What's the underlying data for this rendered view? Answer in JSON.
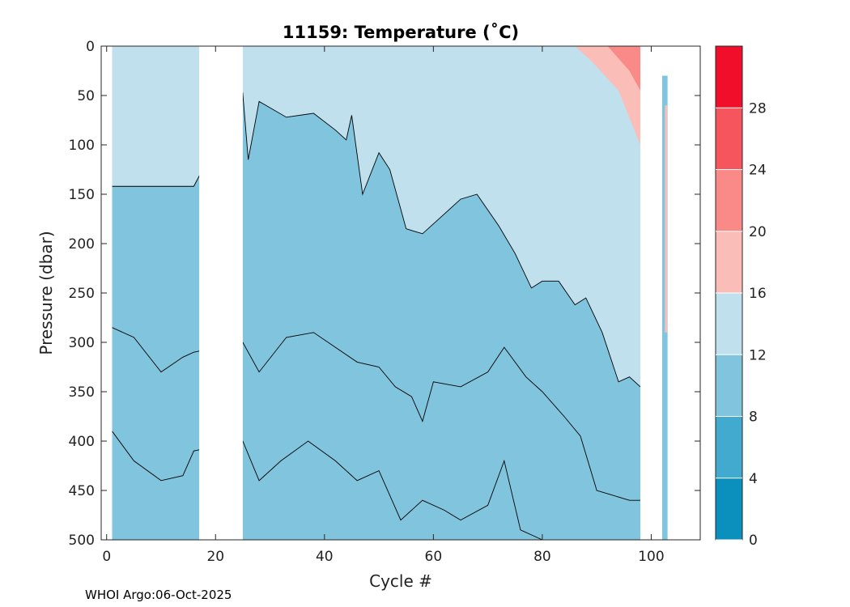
{
  "chart_data": {
    "type": "heatmap",
    "title": "11159:  Temperature (˚C)",
    "xlabel": "Cycle #",
    "ylabel": "Pressure (dbar)",
    "xlim": [
      -1,
      109
    ],
    "ylim": [
      500,
      0
    ],
    "x_ticks": [
      "0",
      "20",
      "40",
      "60",
      "80",
      "100"
    ],
    "y_ticks": [
      "0",
      "50",
      "100",
      "150",
      "200",
      "250",
      "300",
      "350",
      "400",
      "450",
      "500"
    ],
    "colorbar": {
      "levels": [
        0,
        4,
        8,
        12,
        16,
        20,
        24,
        28,
        32
      ],
      "tick_labels": [
        "0",
        "4",
        "8",
        "12",
        "16",
        "20",
        "24",
        "28"
      ],
      "colors": [
        "#0b8fbd",
        "#43aacf",
        "#80c4dd",
        "#bfe0ec",
        "#fbbdb7",
        "#f98a88",
        "#f5555c",
        "#f10e2a"
      ]
    },
    "data_gaps": [
      [
        17,
        25
      ],
      [
        98,
        102
      ]
    ],
    "contours": [
      {
        "level": 12,
        "pressure_by_cycle": [
          [
            1,
            142
          ],
          [
            16,
            142
          ],
          [
            25,
            48
          ],
          [
            26,
            115
          ],
          [
            28,
            56
          ],
          [
            33,
            72
          ],
          [
            38,
            68
          ],
          [
            42,
            85
          ],
          [
            44,
            95
          ],
          [
            45,
            70
          ],
          [
            47,
            150
          ],
          [
            50,
            108
          ],
          [
            52,
            125
          ],
          [
            55,
            185
          ],
          [
            58,
            190
          ],
          [
            62,
            170
          ],
          [
            65,
            155
          ],
          [
            68,
            150
          ],
          [
            72,
            182
          ],
          [
            75,
            210
          ],
          [
            78,
            245
          ],
          [
            80,
            238
          ],
          [
            83,
            238
          ],
          [
            86,
            262
          ],
          [
            88,
            255
          ],
          [
            91,
            290
          ],
          [
            94,
            340
          ],
          [
            96,
            335
          ],
          [
            98,
            345
          ]
        ]
      },
      {
        "level": 8,
        "pressure_by_cycle": [
          [
            1,
            285
          ],
          [
            5,
            295
          ],
          [
            10,
            330
          ],
          [
            14,
            315
          ],
          [
            16,
            310
          ],
          [
            25,
            300
          ],
          [
            28,
            330
          ],
          [
            33,
            295
          ],
          [
            38,
            290
          ],
          [
            42,
            305
          ],
          [
            46,
            320
          ],
          [
            50,
            325
          ],
          [
            53,
            345
          ],
          [
            56,
            355
          ],
          [
            58,
            380
          ],
          [
            60,
            340
          ],
          [
            65,
            345
          ],
          [
            70,
            330
          ],
          [
            73,
            305
          ],
          [
            77,
            335
          ],
          [
            80,
            350
          ],
          [
            84,
            375
          ],
          [
            87,
            395
          ],
          [
            90,
            450
          ],
          [
            93,
            455
          ],
          [
            96,
            460
          ],
          [
            98,
            460
          ]
        ]
      },
      {
        "level": 4,
        "pressure_by_cycle": [
          [
            1,
            390
          ],
          [
            5,
            420
          ],
          [
            10,
            440
          ],
          [
            14,
            435
          ],
          [
            16,
            410
          ],
          [
            25,
            400
          ],
          [
            28,
            440
          ],
          [
            32,
            420
          ],
          [
            37,
            400
          ],
          [
            42,
            420
          ],
          [
            46,
            440
          ],
          [
            50,
            430
          ],
          [
            54,
            480
          ],
          [
            58,
            460
          ],
          [
            62,
            470
          ],
          [
            65,
            480
          ],
          [
            70,
            465
          ],
          [
            73,
            420
          ],
          [
            76,
            490
          ],
          [
            80,
            500
          ]
        ]
      }
    ],
    "warm_region": {
      "min_cycle": 86,
      "max_cycle": 98,
      "max_pressure": 100,
      "temperature_range": [
        16,
        24
      ]
    }
  },
  "footer": {
    "text": "WHOI Argo:06-Oct-2025"
  }
}
